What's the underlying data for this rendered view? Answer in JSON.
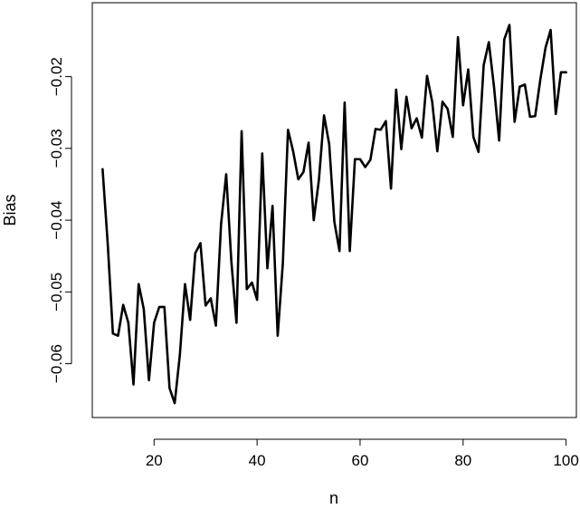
{
  "chart_data": {
    "type": "line",
    "title": "",
    "xlabel": "n",
    "ylabel": "Bias",
    "xlim": [
      8,
      102
    ],
    "ylim": [
      -0.0675,
      -0.0097
    ],
    "x_ticks": [
      20,
      40,
      60,
      80,
      100
    ],
    "x_tick_labels": [
      "20",
      "40",
      "60",
      "80",
      "100"
    ],
    "y_ticks": [
      -0.06,
      -0.05,
      -0.04,
      -0.03,
      -0.02
    ],
    "y_tick_labels": [
      "−0.06",
      "−0.05",
      "−0.04",
      "−0.03",
      "−0.02"
    ],
    "grid": false,
    "legend": "none",
    "line_color": "#000000",
    "series": [
      {
        "x": [
          10,
          11,
          12,
          13,
          14,
          15,
          16,
          17,
          18,
          19,
          20,
          21,
          22,
          23,
          24,
          25,
          26,
          27,
          28,
          29,
          30,
          31,
          32,
          33,
          34,
          35,
          36,
          37,
          38,
          39,
          40,
          41,
          42,
          43,
          44,
          45,
          46,
          47,
          48,
          49,
          50,
          51,
          52,
          53,
          54,
          55,
          56,
          57,
          58,
          59,
          60,
          61,
          62,
          63,
          64,
          65,
          66,
          67,
          68,
          69,
          70,
          71,
          72,
          73,
          74,
          75,
          76,
          77,
          78,
          79,
          80,
          81,
          82,
          83,
          84,
          85,
          86,
          87,
          88,
          89,
          90,
          91,
          92,
          93,
          94,
          95,
          96,
          97,
          98,
          99,
          100
        ],
        "y": [
          -0.0329,
          -0.0433,
          -0.0558,
          -0.0561,
          -0.0518,
          -0.0543,
          -0.0629,
          -0.0489,
          -0.0524,
          -0.0623,
          -0.0543,
          -0.0521,
          -0.0521,
          -0.0634,
          -0.0655,
          -0.0588,
          -0.0489,
          -0.0539,
          -0.0446,
          -0.0432,
          -0.0519,
          -0.0509,
          -0.0547,
          -0.0406,
          -0.0336,
          -0.0457,
          -0.0543,
          -0.0276,
          -0.0496,
          -0.0487,
          -0.0511,
          -0.0307,
          -0.0467,
          -0.038,
          -0.0561,
          -0.046,
          -0.0274,
          -0.0304,
          -0.0343,
          -0.0333,
          -0.0292,
          -0.04,
          -0.0344,
          -0.0254,
          -0.0294,
          -0.0402,
          -0.0443,
          -0.0236,
          -0.0443,
          -0.0315,
          -0.0315,
          -0.0326,
          -0.0316,
          -0.0273,
          -0.0274,
          -0.0262,
          -0.0356,
          -0.0218,
          -0.0301,
          -0.0228,
          -0.0272,
          -0.0258,
          -0.0285,
          -0.0199,
          -0.0235,
          -0.0304,
          -0.0235,
          -0.0245,
          -0.0284,
          -0.0145,
          -0.024,
          -0.019,
          -0.0284,
          -0.0305,
          -0.0184,
          -0.0152,
          -0.0214,
          -0.0289,
          -0.0148,
          -0.0128,
          -0.0263,
          -0.0214,
          -0.0211,
          -0.0256,
          -0.0255,
          -0.0204,
          -0.016,
          -0.0135,
          -0.0252,
          -0.0194,
          -0.0194
        ]
      }
    ]
  }
}
